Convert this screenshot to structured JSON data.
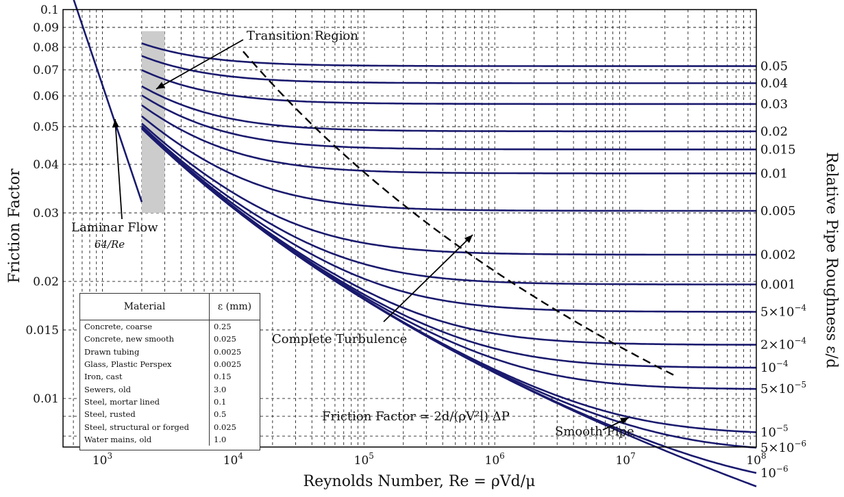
{
  "chart_data": {
    "type": "line",
    "title": "",
    "xlabel": "Reynolds Number, Re = ρVd/μ",
    "ylabel": "Friction Factor",
    "ylabel_right": "Relative Pipe Roughness ε/d",
    "xscale": "log",
    "yscale": "log",
    "xlim": [
      500,
      100000000
    ],
    "ylim": [
      0.0075,
      0.1
    ],
    "grid": true,
    "x_ticks": [
      "10^3",
      "10^4",
      "10^5",
      "10^6",
      "10^7",
      "10^8"
    ],
    "y_ticks": [
      {
        "value": 0.1,
        "label": "0.1"
      },
      {
        "value": 0.09,
        "label": "0.09"
      },
      {
        "value": 0.08,
        "label": "0.08"
      },
      {
        "value": 0.07,
        "label": "0.07"
      },
      {
        "value": 0.06,
        "label": "0.06"
      },
      {
        "value": 0.05,
        "label": "0.05"
      },
      {
        "value": 0.04,
        "label": "0.04"
      },
      {
        "value": 0.03,
        "label": "0.03"
      },
      {
        "value": 0.02,
        "label": "0.02"
      },
      {
        "value": 0.015,
        "label": "0.015"
      },
      {
        "value": 0.01,
        "label": "0.01"
      }
    ],
    "laminar_series": {
      "label": "Laminar Flow",
      "formula": "64/Re",
      "x_range": [
        600,
        2000
      ]
    },
    "transition_region": {
      "label": "Transition Region",
      "x_range": [
        2000,
        3000
      ],
      "y_range": [
        0.03,
        0.088
      ]
    },
    "complete_turbulence": {
      "label": "Complete Turbulence",
      "style": "dashed"
    },
    "smooth_pipe_label": "Smooth Pipe",
    "formula_label": "Friction Factor = 2d/(ρV²l) ΔP",
    "roughness_series": [
      {
        "label": "0.05",
        "value": 0.05
      },
      {
        "label": "0.04",
        "value": 0.04
      },
      {
        "label": "0.03",
        "value": 0.03
      },
      {
        "label": "0.02",
        "value": 0.02
      },
      {
        "label": "0.015",
        "value": 0.015
      },
      {
        "label": "0.01",
        "value": 0.01
      },
      {
        "label": "0.005",
        "value": 0.005
      },
      {
        "label": "0.002",
        "value": 0.002
      },
      {
        "label": "0.001",
        "value": 0.001
      },
      {
        "label": "5×10^-4",
        "value": 0.0005
      },
      {
        "label": "2×10^-4",
        "value": 0.0002
      },
      {
        "label": "10^-4",
        "value": 0.0001
      },
      {
        "label": "5×10^-5",
        "value": 5e-05
      },
      {
        "label": "10^-5",
        "value": 1e-05
      },
      {
        "label": "5×10^-6",
        "value": 5e-06
      },
      {
        "label": "10^-6",
        "value": 1e-06
      },
      {
        "label": "",
        "value": 0
      }
    ],
    "line_color": "#1a1a6e",
    "transition_color": "#cccccc"
  },
  "material_table": {
    "headers": [
      "Material",
      "ε (mm)"
    ],
    "rows": [
      [
        "Concrete, coarse",
        "0.25"
      ],
      [
        "Concrete, new smooth",
        "0.025"
      ],
      [
        "Drawn tubing",
        "0.0025"
      ],
      [
        "Glass, Plastic Perspex",
        "0.0025"
      ],
      [
        "Iron, cast",
        "0.15"
      ],
      [
        "Sewers, old",
        "3.0"
      ],
      [
        "Steel, mortar lined",
        "0.1"
      ],
      [
        "Steel, rusted",
        "0.5"
      ],
      [
        "Steel, structural or forged",
        "0.025"
      ],
      [
        "Water mains, old",
        "1.0"
      ]
    ]
  }
}
